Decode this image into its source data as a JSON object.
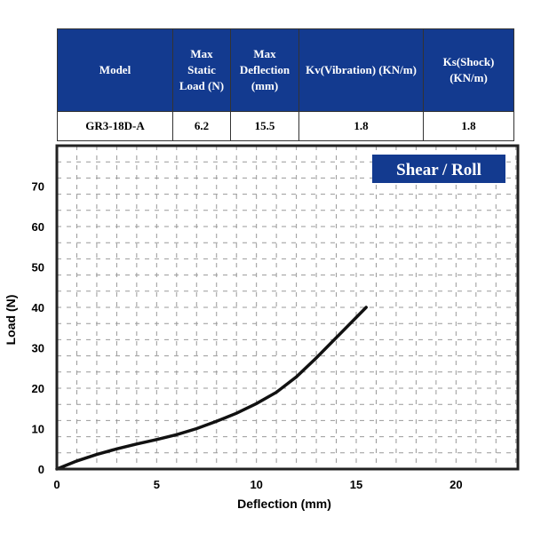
{
  "table": {
    "headers": [
      "Model",
      "Max Static Load (N)",
      "Max Deflection (mm)",
      "Kv(Vibration) (KN/m)",
      "Ks(Shock) (KN/m)"
    ],
    "row": [
      "GR3-18D-A",
      "6.2",
      "15.5",
      "1.8",
      "1.8"
    ],
    "header_color": "#133a8f"
  },
  "chart_data": {
    "type": "line",
    "badge": "Shear / Roll",
    "xlabel": "Deflection (mm)",
    "ylabel": "Load (N)",
    "xlim": [
      0,
      23.1
    ],
    "ylim": [
      0,
      80
    ],
    "xticks": [
      0,
      5,
      10,
      15,
      20
    ],
    "yticks": [
      0,
      10,
      20,
      30,
      40,
      50,
      60,
      70
    ],
    "grid": true,
    "series": [
      {
        "x": [
          0,
          1,
          2,
          3,
          4,
          5,
          6,
          7,
          8,
          9,
          10,
          11,
          12,
          13,
          14,
          15,
          15.5
        ],
        "y": [
          0,
          2,
          3.6,
          5,
          6.2,
          7.3,
          8.5,
          10,
          11.8,
          13.8,
          16.2,
          19,
          22.8,
          27.5,
          32.5,
          37.5,
          40
        ],
        "color": "#111111"
      }
    ]
  }
}
